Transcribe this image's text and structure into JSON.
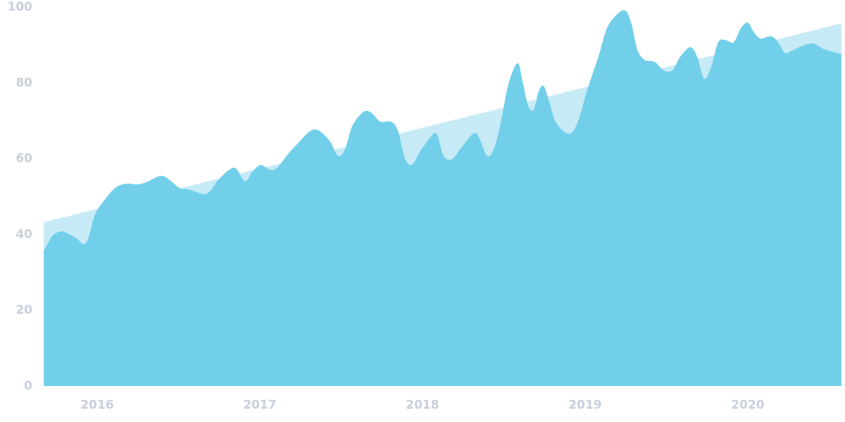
{
  "chart_data": {
    "type": "area",
    "xlim": [
      2015.671,
      2020.576
    ],
    "xticks": [
      2016,
      2017,
      2018,
      2019,
      2020
    ],
    "ylim": [
      0,
      100
    ],
    "yticks": [
      0,
      20,
      40,
      60,
      80,
      100
    ],
    "grid": false,
    "series": [
      {
        "color": "#c6eaf6",
        "x": [
          2015.671,
          2020.576
        ],
        "values": [
          43.2,
          95.7
        ]
      },
      {
        "color": "#72cfea",
        "x": [
          2015.671,
          2015.727,
          2015.784,
          2015.835,
          2015.879,
          2015.913,
          2015.944,
          2015.987,
          2016.052,
          2016.117,
          2016.182,
          2016.247,
          2016.312,
          2016.39,
          2016.442,
          2016.506,
          2016.571,
          2016.658,
          2016.701,
          2016.745,
          2016.81,
          2016.853,
          2016.909,
          2016.952,
          2017.004,
          2017.069,
          2017.113,
          2017.169,
          2017.242,
          2017.307,
          2017.359,
          2017.429,
          2017.481,
          2017.524,
          2017.567,
          2017.632,
          2017.684,
          2017.74,
          2017.805,
          2017.848,
          2017.892,
          2017.935,
          2017.987,
          2018.043,
          2018.087,
          2018.13,
          2018.182,
          2018.238,
          2018.312,
          2018.346,
          2018.398,
          2018.442,
          2018.485,
          2018.528,
          2018.584,
          2018.615,
          2018.649,
          2018.684,
          2018.714,
          2018.745,
          2018.779,
          2018.823,
          2018.9,
          2018.952,
          2019.017,
          2019.082,
          2019.134,
          2019.19,
          2019.247,
          2019.286,
          2019.32,
          2019.364,
          2019.429,
          2019.481,
          2019.537,
          2019.58,
          2019.645,
          2019.688,
          2019.732,
          2019.775,
          2019.818,
          2019.861,
          2019.913,
          2019.957,
          2020.0,
          2020.035,
          2020.078,
          2020.143,
          2020.186,
          2020.229,
          2020.273,
          2020.338,
          2020.403,
          2020.468,
          2020.576
        ],
        "values": [
          35.6,
          39.7,
          40.8,
          39.9,
          38.8,
          37.5,
          38.8,
          45.3,
          49.5,
          52.5,
          53.4,
          53.2,
          54,
          55.5,
          54.5,
          52.3,
          51.8,
          50.6,
          51.8,
          54.4,
          57,
          57.4,
          54,
          56.4,
          58.3,
          57,
          57.9,
          61,
          64.4,
          67.2,
          67.5,
          64.7,
          60.7,
          62.5,
          68.5,
          72.2,
          72.2,
          69.8,
          69.8,
          67.5,
          60.1,
          58.4,
          62,
          65.3,
          66.6,
          60.7,
          59.9,
          62.9,
          66.6,
          65.7,
          60.7,
          62.9,
          70.3,
          79.6,
          85.2,
          80.5,
          74,
          72.9,
          77.7,
          79.2,
          75,
          69.4,
          66.6,
          69.4,
          78.7,
          87,
          94.4,
          97.8,
          99.1,
          95.4,
          88.9,
          86.1,
          85.5,
          83.3,
          83.3,
          86.6,
          89.4,
          87,
          81.1,
          84.2,
          90.7,
          91.3,
          90.7,
          94.4,
          95.9,
          93.5,
          91.7,
          92.3,
          90.7,
          87.9,
          88.5,
          89.8,
          90.4,
          88.9,
          87.6
        ]
      }
    ]
  }
}
